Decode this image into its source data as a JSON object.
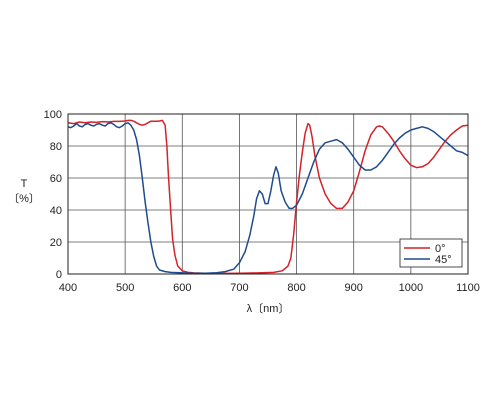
{
  "chart_data": {
    "type": "line",
    "title": "",
    "xlabel": "λ〔nm〕",
    "ylabel_lines": [
      "T",
      "〔%〕"
    ],
    "xlim": [
      400,
      1100
    ],
    "ylim": [
      0,
      100
    ],
    "xticks": [
      400,
      500,
      600,
      700,
      800,
      900,
      1000,
      1100
    ],
    "yticks": [
      0,
      20,
      40,
      60,
      80,
      100
    ],
    "grid": true,
    "legend_position": "bottom-right",
    "series": [
      {
        "name": "0°",
        "color": "#d2232a",
        "points": [
          [
            400,
            94.5
          ],
          [
            410,
            94
          ],
          [
            420,
            95
          ],
          [
            430,
            94.5
          ],
          [
            440,
            95
          ],
          [
            450,
            94.8
          ],
          [
            460,
            95.2
          ],
          [
            470,
            95
          ],
          [
            480,
            95.4
          ],
          [
            490,
            95.4
          ],
          [
            500,
            95.6
          ],
          [
            505,
            96
          ],
          [
            510,
            96
          ],
          [
            515,
            95.5
          ],
          [
            520,
            94.5
          ],
          [
            525,
            93.5
          ],
          [
            530,
            93
          ],
          [
            535,
            93.5
          ],
          [
            540,
            94.5
          ],
          [
            545,
            95.5
          ],
          [
            550,
            95.5
          ],
          [
            555,
            95.5
          ],
          [
            560,
            95.6
          ],
          [
            565,
            96
          ],
          [
            570,
            93
          ],
          [
            573,
            80
          ],
          [
            576,
            60
          ],
          [
            580,
            38
          ],
          [
            583,
            22
          ],
          [
            587,
            12
          ],
          [
            592,
            5
          ],
          [
            600,
            2
          ],
          [
            610,
            1
          ],
          [
            620,
            0.7
          ],
          [
            640,
            0.5
          ],
          [
            660,
            0.4
          ],
          [
            680,
            0.4
          ],
          [
            700,
            0.5
          ],
          [
            720,
            0.6
          ],
          [
            740,
            0.8
          ],
          [
            760,
            1
          ],
          [
            775,
            2
          ],
          [
            785,
            5
          ],
          [
            790,
            10
          ],
          [
            795,
            25
          ],
          [
            800,
            45
          ],
          [
            805,
            62
          ],
          [
            810,
            76
          ],
          [
            815,
            88
          ],
          [
            820,
            94
          ],
          [
            823,
            93
          ],
          [
            827,
            86
          ],
          [
            832,
            74
          ],
          [
            840,
            60
          ],
          [
            850,
            50
          ],
          [
            860,
            44
          ],
          [
            870,
            41
          ],
          [
            880,
            41
          ],
          [
            890,
            45
          ],
          [
            900,
            52
          ],
          [
            910,
            64
          ],
          [
            920,
            77
          ],
          [
            930,
            87
          ],
          [
            940,
            92
          ],
          [
            945,
            92.5
          ],
          [
            950,
            92
          ],
          [
            960,
            88
          ],
          [
            970,
            83
          ],
          [
            980,
            77
          ],
          [
            990,
            72
          ],
          [
            1000,
            68
          ],
          [
            1010,
            66.5
          ],
          [
            1020,
            67
          ],
          [
            1030,
            69
          ],
          [
            1040,
            73
          ],
          [
            1050,
            78
          ],
          [
            1060,
            83
          ],
          [
            1070,
            87
          ],
          [
            1080,
            90
          ],
          [
            1090,
            92.5
          ],
          [
            1100,
            93
          ]
        ]
      },
      {
        "name": "45°",
        "color": "#1e4c8c",
        "points": [
          [
            400,
            92
          ],
          [
            405,
            91.5
          ],
          [
            410,
            92.5
          ],
          [
            415,
            94
          ],
          [
            420,
            92.5
          ],
          [
            425,
            92
          ],
          [
            430,
            93.5
          ],
          [
            435,
            94
          ],
          [
            440,
            93
          ],
          [
            445,
            92.5
          ],
          [
            450,
            93.5
          ],
          [
            455,
            94
          ],
          [
            460,
            93
          ],
          [
            465,
            92.5
          ],
          [
            470,
            94
          ],
          [
            475,
            94.5
          ],
          [
            480,
            93.5
          ],
          [
            485,
            92
          ],
          [
            490,
            91.5
          ],
          [
            495,
            92.5
          ],
          [
            500,
            94
          ],
          [
            505,
            94.5
          ],
          [
            510,
            93
          ],
          [
            515,
            90
          ],
          [
            520,
            84
          ],
          [
            525,
            74
          ],
          [
            530,
            60
          ],
          [
            535,
            45
          ],
          [
            540,
            32
          ],
          [
            545,
            20
          ],
          [
            550,
            11
          ],
          [
            555,
            5
          ],
          [
            560,
            2.5
          ],
          [
            570,
            1.5
          ],
          [
            580,
            1
          ],
          [
            600,
            0.7
          ],
          [
            620,
            0.5
          ],
          [
            640,
            0.5
          ],
          [
            660,
            0.8
          ],
          [
            675,
            1.5
          ],
          [
            690,
            3
          ],
          [
            700,
            7
          ],
          [
            710,
            14
          ],
          [
            718,
            24
          ],
          [
            725,
            36
          ],
          [
            730,
            47
          ],
          [
            735,
            52
          ],
          [
            740,
            50
          ],
          [
            745,
            44
          ],
          [
            750,
            44
          ],
          [
            755,
            52
          ],
          [
            760,
            62
          ],
          [
            764,
            67
          ],
          [
            768,
            63
          ],
          [
            773,
            52
          ],
          [
            780,
            45
          ],
          [
            787,
            41
          ],
          [
            793,
            41
          ],
          [
            800,
            43
          ],
          [
            810,
            50
          ],
          [
            820,
            60
          ],
          [
            830,
            70
          ],
          [
            840,
            78
          ],
          [
            850,
            82
          ],
          [
            860,
            83
          ],
          [
            870,
            84
          ],
          [
            880,
            82
          ],
          [
            890,
            78
          ],
          [
            900,
            73
          ],
          [
            910,
            68
          ],
          [
            920,
            65
          ],
          [
            930,
            65
          ],
          [
            940,
            67
          ],
          [
            950,
            71
          ],
          [
            960,
            76
          ],
          [
            970,
            81
          ],
          [
            980,
            85
          ],
          [
            990,
            88
          ],
          [
            1000,
            90
          ],
          [
            1010,
            91
          ],
          [
            1020,
            92
          ],
          [
            1030,
            91
          ],
          [
            1040,
            89
          ],
          [
            1050,
            86
          ],
          [
            1060,
            83
          ],
          [
            1070,
            80
          ],
          [
            1080,
            77
          ],
          [
            1090,
            76
          ],
          [
            1100,
            74
          ]
        ]
      }
    ]
  }
}
